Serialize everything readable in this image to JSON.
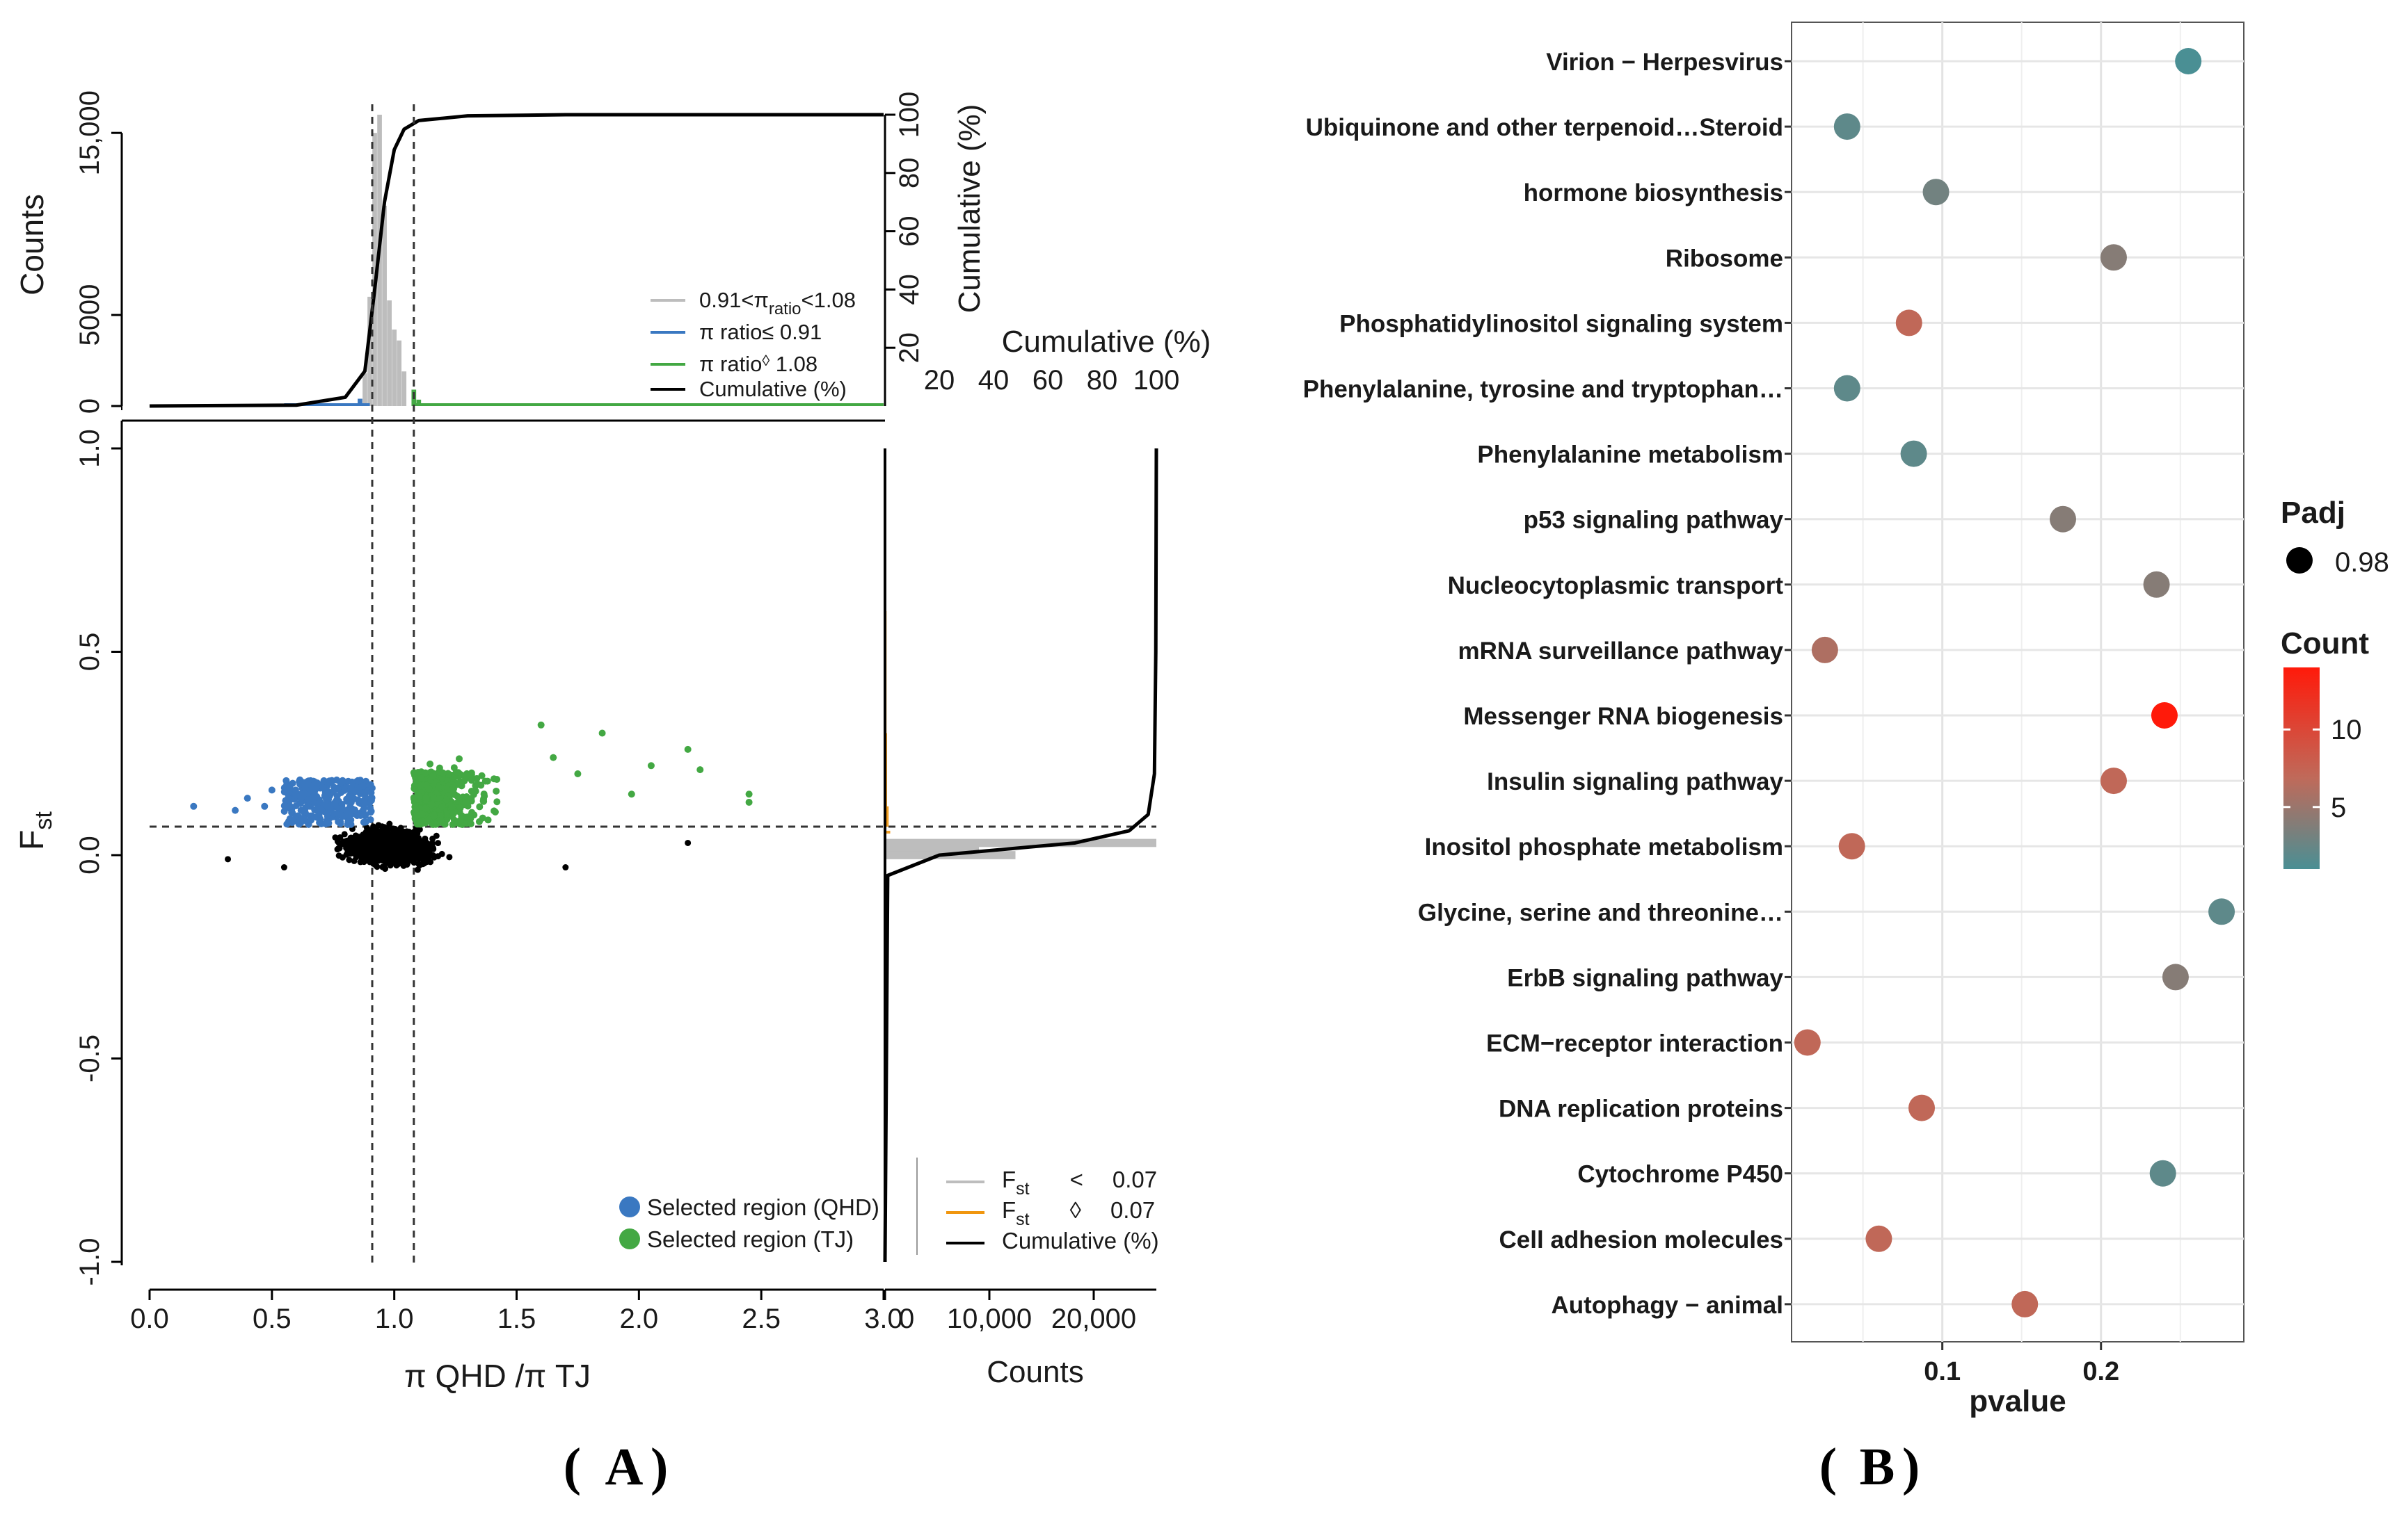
{
  "chart_data": [
    {
      "id": "A",
      "type": "scatter",
      "panel_label_open": "(",
      "panel_label": "A",
      "panel_label_close": ")",
      "xlabel": "π QHD /π TJ",
      "ylabel_main": "F",
      "ylabel_sub": "st",
      "xlim": [
        0,
        3.0
      ],
      "ylim": [
        -1.0,
        1.0
      ],
      "x_ticks": [
        "0.0",
        "0.5",
        "1.0",
        "1.5",
        "2.0",
        "2.5",
        "3.0"
      ],
      "y_ticks": [
        "-1.0",
        "-0.5",
        "0.0",
        "0.5",
        "1.0"
      ],
      "x_tick_values": [
        0,
        0.5,
        1.0,
        1.5,
        2.0,
        2.5,
        3.0
      ],
      "y_tick_values": [
        -1.0,
        -0.5,
        0.0,
        0.5,
        1.0
      ],
      "thresholds": {
        "pi_low": 0.91,
        "pi_high": 1.08,
        "fst": 0.07
      },
      "colors": {
        "qhd": "#3a78c1",
        "tj": "#43a843",
        "other": "#000000",
        "gray": "#bdbdbd",
        "orange": "#f0960f"
      },
      "scatter_legend": [
        {
          "label": "Selected region (QHD)",
          "color": "#3a78c1"
        },
        {
          "label": "Selected region (TJ)",
          "color": "#43a843"
        }
      ],
      "top_histogram": {
        "ylabel": "Counts",
        "y_ticks": [
          "0",
          "5000",
          "15,000"
        ],
        "y_tick_values": [
          0,
          5000,
          15000
        ],
        "ylim": [
          0,
          16000
        ],
        "right_axis_label": "Cumulative  (%)",
        "right_ticks": [
          "20",
          "40",
          "60",
          "80",
          "100"
        ],
        "bins": [
          {
            "x": 0.88,
            "count": 1800,
            "group": "gray"
          },
          {
            "x": 0.9,
            "count": 6000,
            "group": "gray"
          },
          {
            "x": 0.92,
            "count": 15000,
            "group": "gray"
          },
          {
            "x": 0.94,
            "count": 16000,
            "group": "gray"
          },
          {
            "x": 0.96,
            "count": 11000,
            "group": "gray"
          },
          {
            "x": 0.98,
            "count": 5800,
            "group": "gray"
          },
          {
            "x": 1.0,
            "count": 4200,
            "group": "gray"
          },
          {
            "x": 1.02,
            "count": 3600,
            "group": "gray"
          },
          {
            "x": 1.04,
            "count": 1900,
            "group": "gray"
          },
          {
            "x": 0.86,
            "count": 400,
            "group": "blue"
          },
          {
            "x": 0.84,
            "count": 150,
            "group": "blue"
          },
          {
            "x": 1.08,
            "count": 900,
            "group": "green"
          },
          {
            "x": 1.1,
            "count": 350,
            "group": "green"
          },
          {
            "x": 1.14,
            "count": 150,
            "group": "green"
          }
        ],
        "cumulative": [
          [
            0,
            0
          ],
          [
            0.6,
            0.3
          ],
          [
            0.8,
            3
          ],
          [
            0.88,
            12
          ],
          [
            0.92,
            40
          ],
          [
            0.96,
            70
          ],
          [
            1.0,
            88
          ],
          [
            1.04,
            95
          ],
          [
            1.1,
            98
          ],
          [
            1.3,
            99.6
          ],
          [
            1.7,
            100
          ],
          [
            3.0,
            100
          ]
        ],
        "legend": [
          {
            "label": "0.91<π",
            "sub": "ratio",
            "tail": "<1.08",
            "color": "#bdbdbd"
          },
          {
            "label": "π ratio≤ 0.91",
            "sub": "",
            "tail": "",
            "color": "#3a78c1"
          },
          {
            "label": "π ratio",
            "sub": "◊",
            "tail": " 1.08",
            "color": "#43a843"
          },
          {
            "label": "Cumulative (%)",
            "sub": "",
            "tail": "",
            "color": "#000000"
          }
        ]
      },
      "right_histogram": {
        "xlabel": "Counts",
        "top_axis_label": "Cumulative (%)",
        "top_ticks": [
          "20",
          "40",
          "60",
          "80",
          "100"
        ],
        "x_ticks": [
          "0",
          "10,000",
          "20,000"
        ],
        "x_tick_values": [
          0,
          10000,
          20000
        ],
        "xlim": [
          0,
          26000
        ],
        "bins": [
          {
            "y": 0.03,
            "count": 26000,
            "group": "gray"
          },
          {
            "y": 0.015,
            "count": 9000,
            "group": "gray"
          },
          {
            "y": 0.0,
            "count": 12500,
            "group": "gray"
          },
          {
            "y": 0.06,
            "count": 500,
            "group": "orange"
          },
          {
            "y": 0.12,
            "count": 350,
            "group": "orange"
          },
          {
            "y": 0.3,
            "count": 200,
            "group": "orange"
          },
          {
            "y": 0.6,
            "count": 150,
            "group": "orange"
          },
          {
            "y": 0.9,
            "count": 100,
            "group": "orange"
          }
        ],
        "cumulative": [
          [
            -1.0,
            0
          ],
          [
            -0.05,
            1
          ],
          [
            0.0,
            20
          ],
          [
            0.03,
            70
          ],
          [
            0.06,
            90
          ],
          [
            0.1,
            97
          ],
          [
            0.2,
            99.3
          ],
          [
            0.5,
            99.8
          ],
          [
            1.0,
            100
          ]
        ],
        "legend": [
          {
            "label": "F",
            "sub": "st",
            "op": "<",
            "val": "0.07",
            "color": "#bdbdbd"
          },
          {
            "label": "F",
            "sub": "st",
            "op": "◊",
            "val": "0.07",
            "color": "#f0960f"
          },
          {
            "label": "Cumulative (%)",
            "sub": "",
            "op": "",
            "val": "",
            "color": "#000000"
          }
        ]
      }
    },
    {
      "id": "B",
      "type": "scatter",
      "panel_label_open": "(",
      "panel_label": "B",
      "panel_label_close": ")",
      "xlabel": "pvalue",
      "x_ticks": [
        "0.1",
        "0.2"
      ],
      "x_tick_values": [
        0.1,
        0.2
      ],
      "xlim": [
        0.005,
        0.29
      ],
      "legend_size_title": "Padj",
      "legend_size_value": "0.98",
      "legend_color_title": "Count",
      "color_scale": {
        "min": 1,
        "max": 14,
        "low": "#4a8f94",
        "mid": "#bf6a5a",
        "high": "#ff1a0a",
        "ticks": [
          "5",
          "10"
        ],
        "tick_values": [
          5,
          10
        ]
      },
      "points": [
        {
          "term": "Virion − Herpesvirus",
          "pvalue": 0.255,
          "count": 1
        },
        {
          "term": "Ubiquinone and other terpenoid…Steroid",
          "pvalue": 0.04,
          "count": 2
        },
        {
          "term": "hormone biosynthesis",
          "pvalue": 0.096,
          "count": 3
        },
        {
          "term": "Ribosome",
          "pvalue": 0.208,
          "count": 4
        },
        {
          "term": "Phosphatidylinositol signaling system",
          "pvalue": 0.079,
          "count": 7
        },
        {
          "term": "Phenylalanine, tyrosine and tryptophan…",
          "pvalue": 0.04,
          "count": 2
        },
        {
          "term": "Phenylalanine metabolism",
          "pvalue": 0.082,
          "count": 2
        },
        {
          "term": "p53 signaling pathway",
          "pvalue": 0.176,
          "count": 4
        },
        {
          "term": "Nucleocytoplasmic transport",
          "pvalue": 0.235,
          "count": 4
        },
        {
          "term": "mRNA surveillance pathway",
          "pvalue": 0.026,
          "count": 6
        },
        {
          "term": "Messenger RNA biogenesis",
          "pvalue": 0.24,
          "count": 14
        },
        {
          "term": "Insulin signaling pathway",
          "pvalue": 0.208,
          "count": 7
        },
        {
          "term": "Inositol phosphate metabolism",
          "pvalue": 0.043,
          "count": 7
        },
        {
          "term": "Glycine, serine and threonine…",
          "pvalue": 0.276,
          "count": 2
        },
        {
          "term": "ErbB signaling pathway",
          "pvalue": 0.247,
          "count": 4
        },
        {
          "term": "ECM−receptor interaction",
          "pvalue": 0.015,
          "count": 7
        },
        {
          "term": "DNA replication proteins",
          "pvalue": 0.087,
          "count": 7
        },
        {
          "term": "Cytochrome P450",
          "pvalue": 0.239,
          "count": 2
        },
        {
          "term": "Cell adhesion molecules",
          "pvalue": 0.06,
          "count": 7
        },
        {
          "term": "Autophagy − animal",
          "pvalue": 0.152,
          "count": 7
        }
      ]
    }
  ]
}
